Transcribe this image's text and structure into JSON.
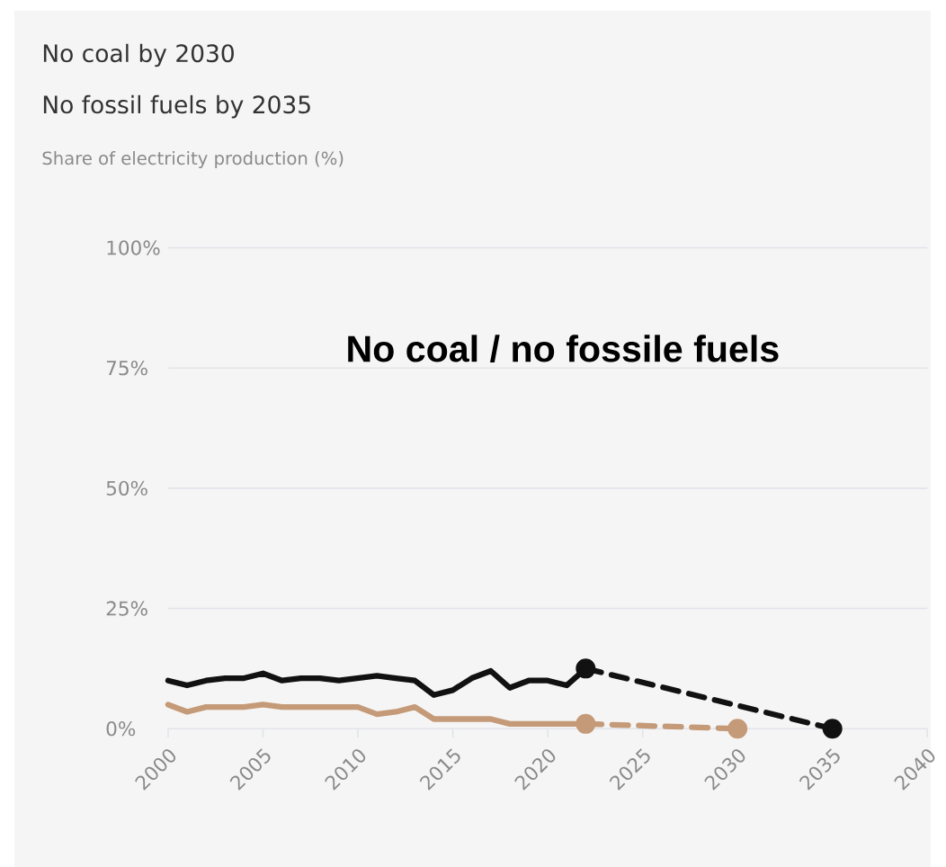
{
  "chart_data": {
    "type": "line",
    "title": "No coal by 2030",
    "subtitle": "No fossil fuels by 2035",
    "annotations": [
      "Share of electricity production (%)",
      "No coal / no fossile fuels"
    ],
    "xlim": [
      2000,
      2040
    ],
    "xticks": [
      2000,
      2005,
      2010,
      2015,
      2020,
      2025,
      2030,
      2035,
      2040
    ],
    "ylim": [
      0,
      100
    ],
    "yticks": [
      {
        "value": 0,
        "label": "0%"
      },
      {
        "value": 25,
        "label": "25%"
      },
      {
        "value": 50,
        "label": "50%"
      },
      {
        "value": 75,
        "label": "75%"
      },
      {
        "value": 100,
        "label": "100%"
      }
    ],
    "grid": "y",
    "series": [
      {
        "color": "#111111",
        "line_style": "solid",
        "marker": "none",
        "x": [
          2000,
          2001,
          2002,
          2003,
          2004,
          2005,
          2006,
          2007,
          2008,
          2009,
          2010,
          2011,
          2012,
          2013,
          2014,
          2015,
          2016,
          2017,
          2018,
          2019,
          2020,
          2021,
          2022
        ],
        "values": [
          10,
          9,
          10,
          10.5,
          10.5,
          11.5,
          10,
          10.5,
          10.5,
          10,
          10.5,
          11,
          10.5,
          10,
          7,
          8,
          10.5,
          12,
          8.5,
          10,
          10,
          9,
          12.5
        ]
      },
      {
        "color": "#111111",
        "line_style": "dashed",
        "marker": "circle",
        "x": [
          2022,
          2035
        ],
        "values": [
          12.5,
          0
        ]
      },
      {
        "color": "#c49a78",
        "line_style": "solid",
        "marker": "none",
        "x": [
          2000,
          2001,
          2002,
          2003,
          2004,
          2005,
          2006,
          2007,
          2008,
          2009,
          2010,
          2011,
          2012,
          2013,
          2014,
          2015,
          2016,
          2017,
          2018,
          2019,
          2020,
          2021,
          2022
        ],
        "values": [
          5,
          3.5,
          4.5,
          4.5,
          4.5,
          5,
          4.5,
          4.5,
          4.5,
          4.5,
          4.5,
          3,
          3.5,
          4.5,
          2,
          2,
          2,
          2,
          1,
          1,
          1,
          1,
          1
        ]
      },
      {
        "color": "#c49a78",
        "line_style": "dashed",
        "marker": "circle",
        "x": [
          2022,
          2030
        ],
        "values": [
          1,
          0
        ]
      }
    ]
  }
}
